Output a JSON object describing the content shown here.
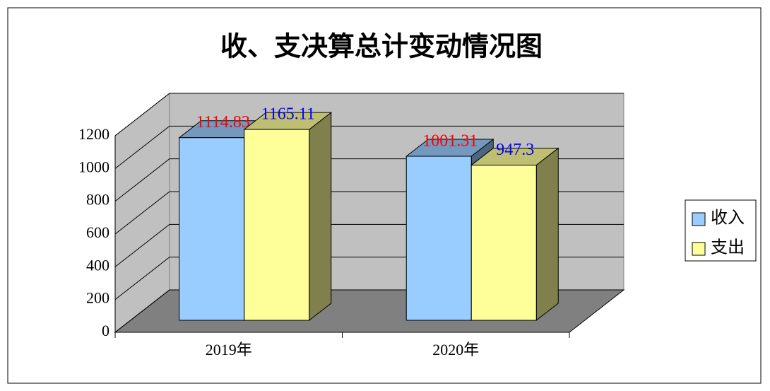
{
  "chart_data": {
    "type": "bar3d",
    "title": "收、支决算总计变动情况图",
    "categories": [
      "2019年",
      "2020年"
    ],
    "series": [
      {
        "name": "收入",
        "color": "#99ccff",
        "label_color": "#ff0000",
        "values": [
          1114.83,
          1001.31
        ]
      },
      {
        "name": "支出",
        "color": "#ffff99",
        "label_color": "#0000ff",
        "values": [
          1165.11,
          947.3
        ]
      }
    ],
    "ylim": [
      0,
      1200
    ],
    "yticks": [
      0,
      200,
      400,
      600,
      800,
      1000,
      1200
    ],
    "grid": true,
    "legend": "right"
  }
}
